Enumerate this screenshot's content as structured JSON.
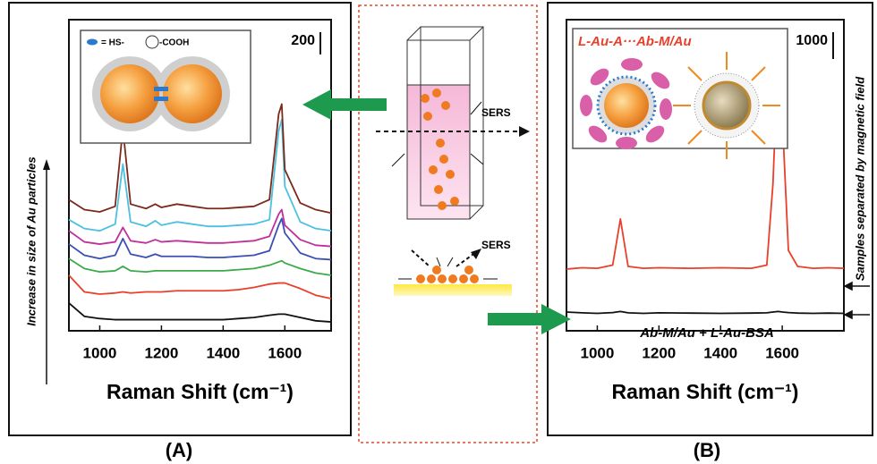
{
  "chart_data": [
    {
      "type": "line",
      "panel_label": "(A)",
      "x_label": "Raman Shift (cm⁻¹)",
      "annotations": [
        "Increase in size of Au particles"
      ],
      "inset_labels": [
        "= HS-",
        "-COOH"
      ],
      "scale_bar": 200,
      "xlim": [
        900,
        1750
      ],
      "xticks": [
        1000,
        1200,
        1400,
        1600
      ],
      "ylim": [
        0,
        2800
      ],
      "x": [
        900,
        950,
        1000,
        1050,
        1075,
        1100,
        1150,
        1180,
        1200,
        1250,
        1300,
        1350,
        1400,
        1450,
        1500,
        1550,
        1580,
        1590,
        1600,
        1650,
        1700,
        1750
      ],
      "series": [
        {
          "color": "#111111",
          "values": [
            250,
            130,
            110,
            100,
            100,
            100,
            100,
            100,
            100,
            100,
            100,
            100,
            100,
            110,
            120,
            140,
            150,
            150,
            150,
            120,
            90,
            80
          ]
        },
        {
          "color": "#e8402a",
          "values": [
            500,
            350,
            330,
            340,
            350,
            340,
            350,
            350,
            350,
            360,
            360,
            360,
            360,
            370,
            390,
            420,
            430,
            430,
            430,
            380,
            320,
            290
          ]
        },
        {
          "color": "#3aaa4a",
          "values": [
            650,
            560,
            530,
            540,
            580,
            540,
            530,
            540,
            540,
            540,
            540,
            540,
            540,
            550,
            560,
            590,
            620,
            630,
            610,
            560,
            520,
            500
          ]
        },
        {
          "color": "#3a4fb5",
          "values": [
            780,
            680,
            650,
            680,
            830,
            690,
            660,
            690,
            670,
            670,
            670,
            660,
            660,
            670,
            680,
            720,
            950,
            1010,
            880,
            700,
            650,
            640
          ]
        },
        {
          "color": "#c0309a",
          "values": [
            900,
            800,
            780,
            800,
            930,
            810,
            790,
            820,
            800,
            810,
            800,
            790,
            790,
            800,
            810,
            850,
            1050,
            1090,
            950,
            820,
            770,
            760
          ]
        },
        {
          "color": "#4cc0e0",
          "values": [
            1000,
            920,
            900,
            960,
            1500,
            980,
            940,
            990,
            950,
            980,
            960,
            940,
            940,
            950,
            960,
            1000,
            1800,
            1900,
            1300,
            980,
            920,
            900
          ]
        },
        {
          "color": "#7a2a1a",
          "values": [
            1180,
            1090,
            1070,
            1120,
            1820,
            1140,
            1100,
            1140,
            1110,
            1140,
            1120,
            1100,
            1100,
            1110,
            1120,
            1180,
            1950,
            2040,
            1450,
            1150,
            1090,
            1060
          ]
        }
      ]
    },
    {
      "type": "line",
      "panel_label": "(B)",
      "x_label": "Raman Shift (cm⁻¹)",
      "annotations": [
        "L-Au-A···Ab-M/Au",
        "Ab-M/Au + L-Au-BSA",
        "Samples separated by magnetic field"
      ],
      "scale_bar": 1000,
      "xlim": [
        900,
        1800
      ],
      "xticks": [
        1000,
        1200,
        1400,
        1600
      ],
      "ylim": [
        0,
        11600
      ],
      "x": [
        900,
        950,
        1000,
        1050,
        1075,
        1100,
        1150,
        1200,
        1300,
        1400,
        1500,
        1550,
        1570,
        1587,
        1600,
        1620,
        1650,
        1700,
        1750,
        1800
      ],
      "series": [
        {
          "color": "#e8402a",
          "values": [
            2300,
            2350,
            2330,
            2450,
            4170,
            2400,
            2330,
            2350,
            2330,
            2350,
            2330,
            2450,
            5500,
            10500,
            8000,
            3000,
            2400,
            2330,
            2350,
            2330
          ]
        },
        {
          "color": "#111111",
          "values": [
            700,
            670,
            650,
            680,
            720,
            670,
            650,
            670,
            660,
            650,
            660,
            670,
            700,
            720,
            700,
            680,
            660,
            650,
            660,
            650
          ]
        }
      ]
    }
  ],
  "schematic": {
    "labels": [
      "SERS",
      "SERS"
    ]
  }
}
